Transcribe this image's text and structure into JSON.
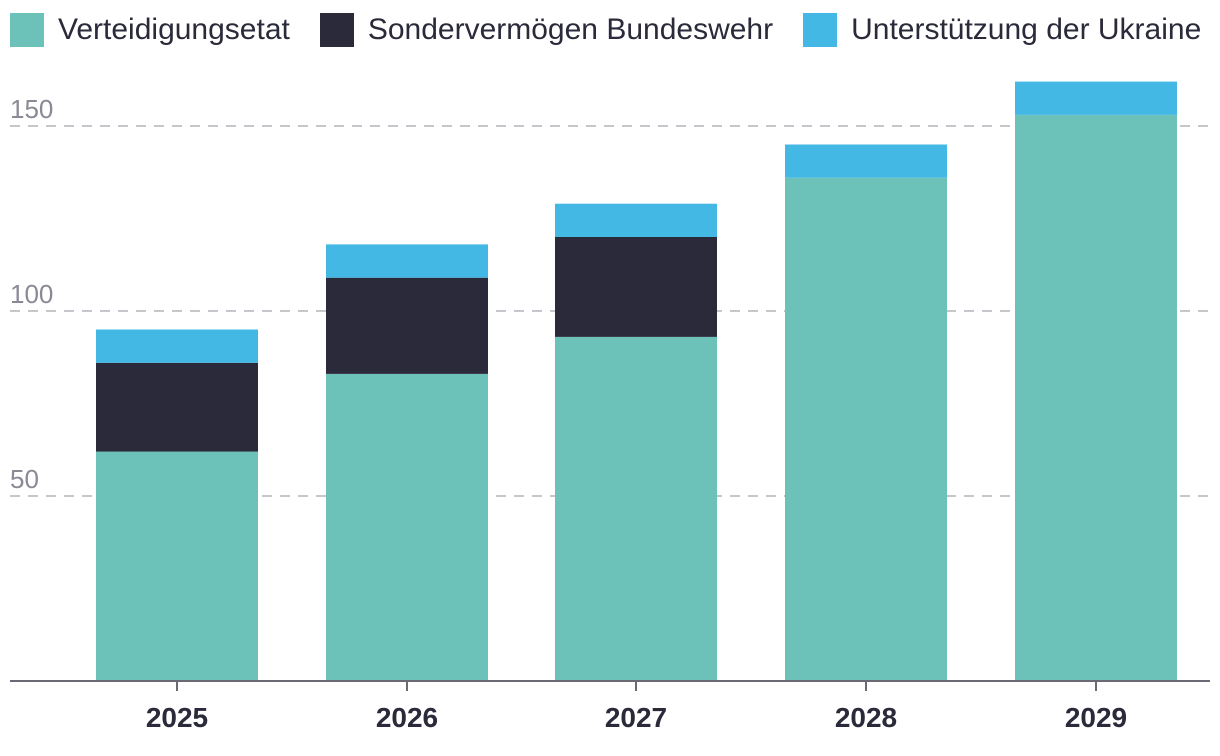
{
  "chart_data": {
    "type": "bar",
    "stacked": true,
    "title": "",
    "xlabel": "",
    "ylabel": "",
    "categories": [
      "2025",
      "2026",
      "2027",
      "2028",
      "2029"
    ],
    "series": [
      {
        "name": "Verteidigungsetat",
        "color": "#6cc2b8",
        "values": [
          62,
          83,
          93,
          136,
          153
        ]
      },
      {
        "name": "Sondervermögen Bundeswehr",
        "color": "#2a2a3a",
        "values": [
          24,
          26,
          27,
          0,
          0
        ]
      },
      {
        "name": "Unterstützung der Ukraine",
        "color": "#44b8e4",
        "values": [
          9,
          9,
          9,
          9,
          9
        ]
      }
    ],
    "ylim": [
      0,
      160
    ],
    "yticks": [
      50,
      100,
      150
    ],
    "grid": true,
    "legend": "top-left"
  }
}
